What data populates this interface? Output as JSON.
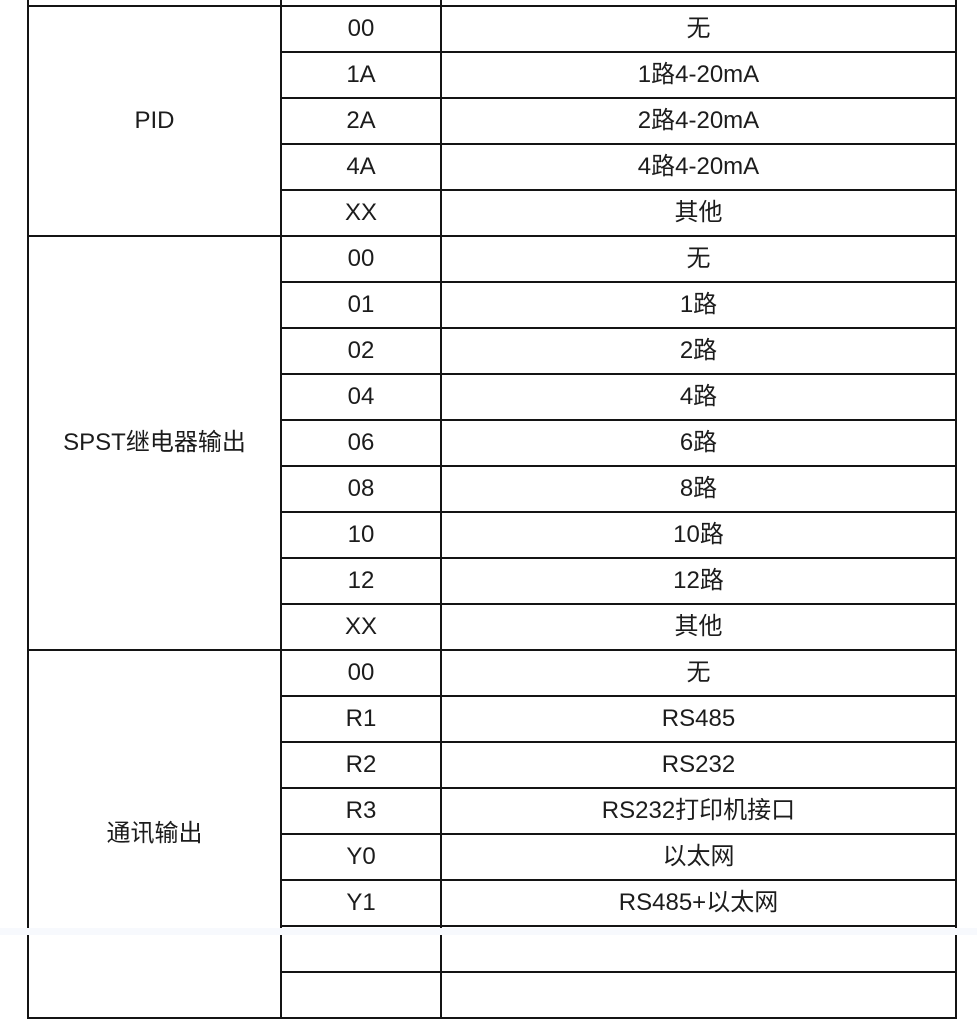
{
  "page": {
    "background_color": "#ffffff",
    "strip_color": "#f7f9fd",
    "border_color": "#141414",
    "text_color": "#1c1c1c"
  },
  "table": {
    "groups": [
      {
        "category": "PID",
        "rows": [
          {
            "code": "00",
            "description": "无"
          },
          {
            "code": "1A",
            "description": "1路4-20mA"
          },
          {
            "code": "2A",
            "description": "2路4-20mA"
          },
          {
            "code": "4A",
            "description": "4路4-20mA"
          },
          {
            "code": "XX",
            "description": "其他"
          }
        ]
      },
      {
        "category": "SPST继电器输出",
        "rows": [
          {
            "code": "00",
            "description": "无"
          },
          {
            "code": "01",
            "description": "1路"
          },
          {
            "code": "02",
            "description": "2路"
          },
          {
            "code": "04",
            "description": "4路"
          },
          {
            "code": "06",
            "description": "6路"
          },
          {
            "code": "08",
            "description": "8路"
          },
          {
            "code": "10",
            "description": "10路"
          },
          {
            "code": "12",
            "description": "12路"
          },
          {
            "code": "XX",
            "description": "其他"
          }
        ]
      },
      {
        "category": "通讯输出",
        "rows": [
          {
            "code": "00",
            "description": "无"
          },
          {
            "code": "R1",
            "description": "RS485"
          },
          {
            "code": "R2",
            "description": "RS232"
          },
          {
            "code": "R3",
            "description": "RS232打印机接口"
          },
          {
            "code": "Y0",
            "description": "以太网"
          },
          {
            "code": "Y1",
            "description": "RS485+以太网"
          }
        ]
      }
    ]
  }
}
